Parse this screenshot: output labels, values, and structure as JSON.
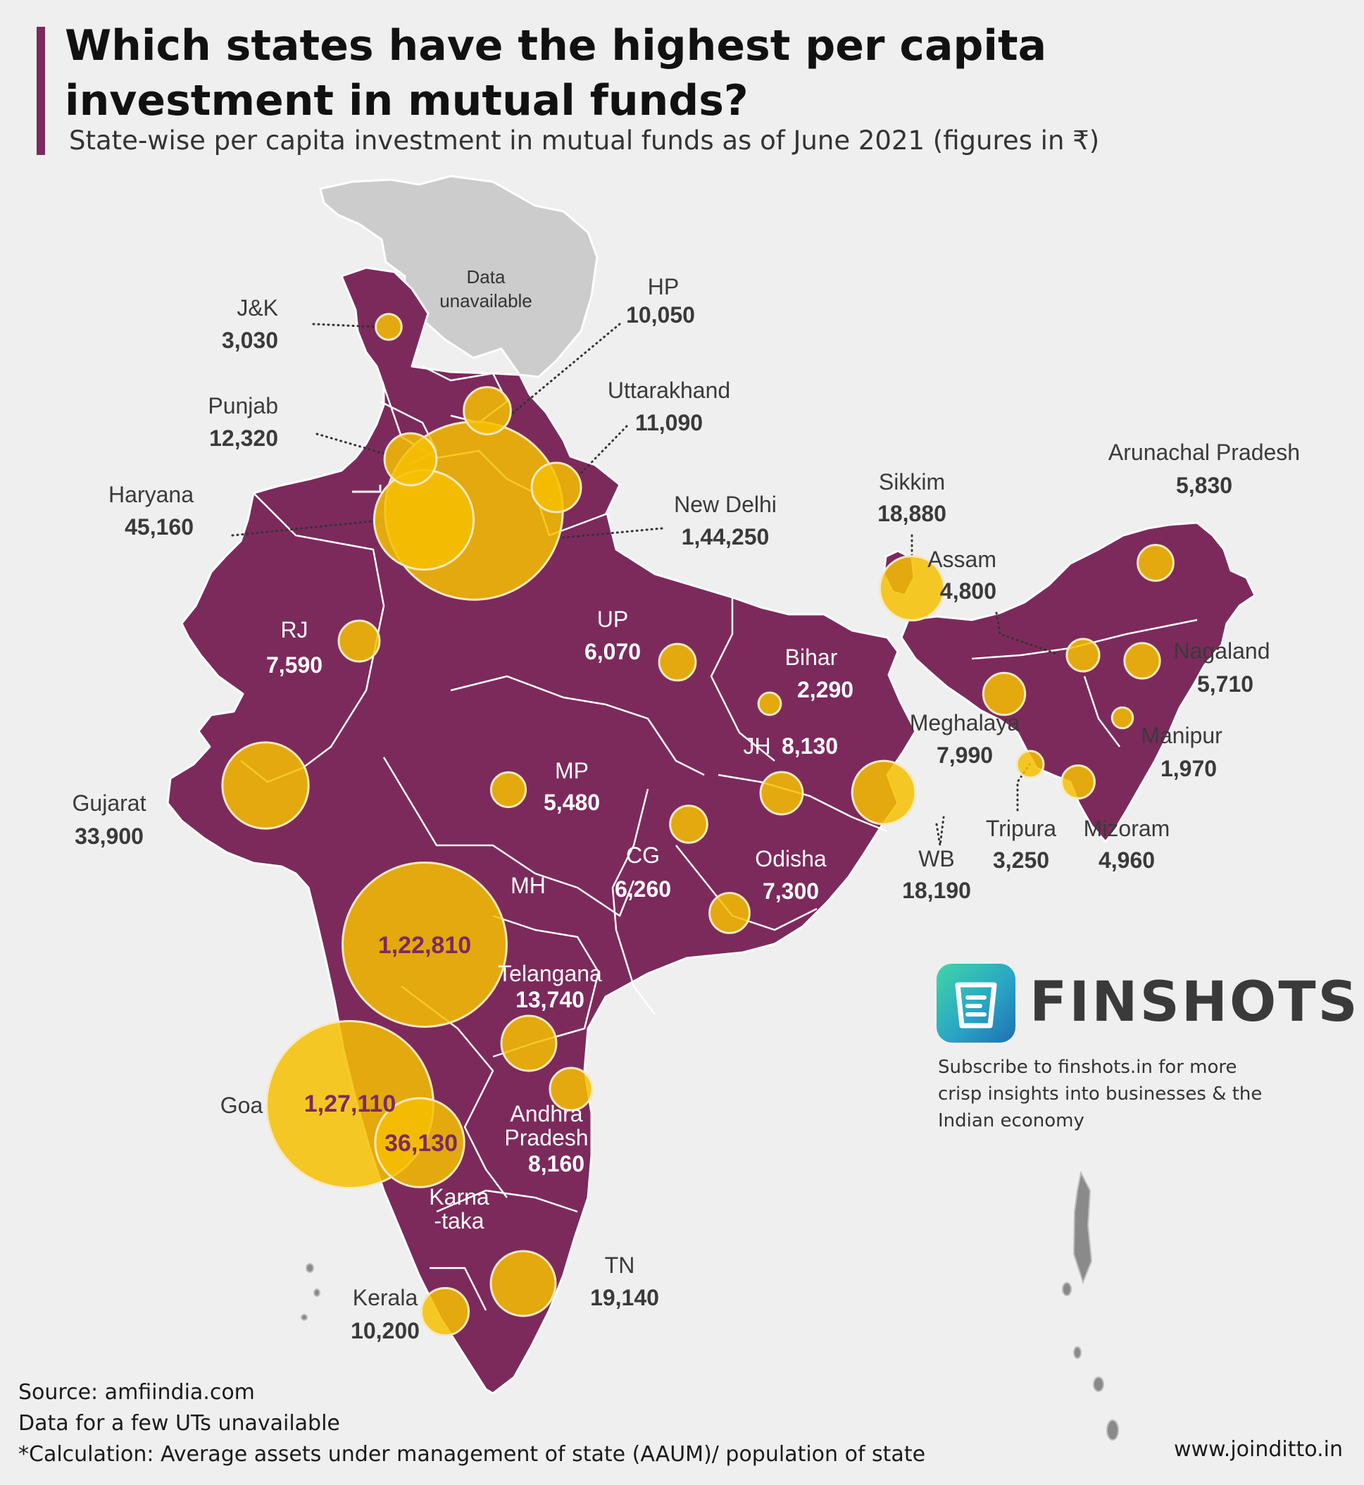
{
  "title": "Which states have the highest per capita investment in mutual funds?",
  "subtitle": "State-wise per capita investment in mutual funds as of June 2021 (figures in ₹)",
  "colors": {
    "accent": "#7c2a5c",
    "map_fill": "#7c2a5c",
    "bubble": "#f6c000",
    "unavailable": "#cccccc",
    "background": "#efefef"
  },
  "map": {
    "unavailable_region": "Data unavailable",
    "unavailable_lines": [
      "Data",
      "unavailable"
    ]
  },
  "chart_data": {
    "type": "bubble-map",
    "unit": "₹",
    "points": [
      {
        "name": "J&K",
        "value": "3,030",
        "v": 3030
      },
      {
        "name": "HP",
        "value": "10,050",
        "v": 10050
      },
      {
        "name": "Punjab",
        "value": "12,320",
        "v": 12320
      },
      {
        "name": "Uttarakhand",
        "value": "11,090",
        "v": 11090
      },
      {
        "name": "Haryana",
        "value": "45,160",
        "v": 45160
      },
      {
        "name": "New Delhi",
        "value": "1,44,250",
        "v": 144250
      },
      {
        "name": "RJ",
        "value": "7,590",
        "v": 7590
      },
      {
        "name": "UP",
        "value": "6,070",
        "v": 6070
      },
      {
        "name": "Bihar",
        "value": "2,290",
        "v": 2290
      },
      {
        "name": "Sikkim",
        "value": "18,880",
        "v": 18880
      },
      {
        "name": "Arunachal Pradesh",
        "value": "5,830",
        "v": 5830
      },
      {
        "name": "Assam",
        "value": "4,800",
        "v": 4800
      },
      {
        "name": "Nagaland",
        "value": "5,710",
        "v": 5710
      },
      {
        "name": "Meghalaya",
        "value": "7,990",
        "v": 7990
      },
      {
        "name": "Manipur",
        "value": "1,970",
        "v": 1970
      },
      {
        "name": "Tripura",
        "value": "3,250",
        "v": 3250
      },
      {
        "name": "Mizoram",
        "value": "4,960",
        "v": 4960
      },
      {
        "name": "JH",
        "value": "8,130",
        "v": 8130
      },
      {
        "name": "WB",
        "value": "18,190",
        "v": 18190
      },
      {
        "name": "MP",
        "value": "5,480",
        "v": 5480
      },
      {
        "name": "Gujarat",
        "value": "33,900",
        "v": 33900
      },
      {
        "name": "CG",
        "value": "6,260",
        "v": 6260
      },
      {
        "name": "Odisha",
        "value": "7,300",
        "v": 7300
      },
      {
        "name": "MH",
        "value": "1,22,810",
        "v": 122810
      },
      {
        "name": "Telangana",
        "value": "13,740",
        "v": 13740
      },
      {
        "name": "Andhra Pradesh",
        "value": "8,160",
        "v": 8160
      },
      {
        "name": "Goa",
        "value": "1,27,110",
        "v": 127110
      },
      {
        "name": "Karnataka",
        "value": "36,130",
        "v": 36130
      },
      {
        "name": "TN",
        "value": "19,140",
        "v": 19140
      },
      {
        "name": "Kerala",
        "value": "10,200",
        "v": 10200
      }
    ],
    "split_labels": {
      "Andhra Pradesh": [
        "Andhra",
        "Pradesh"
      ],
      "Karnataka": [
        "Karna",
        "-taka"
      ]
    }
  },
  "brand": {
    "name": "FINSHOTS",
    "tagline": "Subscribe to finshots.in for more crisp insights into businesses & the Indian economy"
  },
  "footer": {
    "source": "Source: amfiindia.com",
    "note": "Data for a few UTs unavailable",
    "calculation": "*Calculation: Average assets under management of state (AAUM)/ population of state",
    "credit": "www.joinditto.in"
  }
}
